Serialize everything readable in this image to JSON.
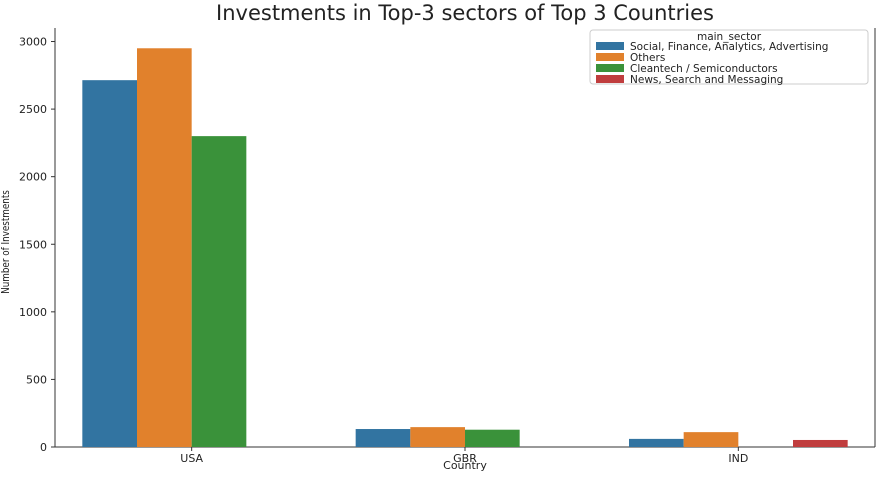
{
  "chart_data": {
    "type": "bar",
    "title": "Investments in Top-3 sectors of Top 3 Countries",
    "xlabel": "Country",
    "ylabel": "Number of Investments",
    "categories": [
      "USA",
      "GBR",
      "IND"
    ],
    "ylim": [
      0,
      3100
    ],
    "yticks": [
      0,
      500,
      1000,
      1500,
      2000,
      2500,
      3000
    ],
    "grid": false,
    "legend_title": "main_sector",
    "legend_position": "top-right",
    "series": [
      {
        "name": "Social, Finance, Analytics, Advertising",
        "color": "#3274a1",
        "values": [
          2714,
          133,
          60
        ]
      },
      {
        "name": "Others",
        "color": "#e1812c",
        "values": [
          2950,
          147,
          110
        ]
      },
      {
        "name": "Cleantech / Semiconductors",
        "color": "#3a923a",
        "values": [
          2300,
          128,
          null
        ]
      },
      {
        "name": "News, Search and Messaging",
        "color": "#c03d3e",
        "values": [
          null,
          null,
          52
        ]
      }
    ]
  }
}
